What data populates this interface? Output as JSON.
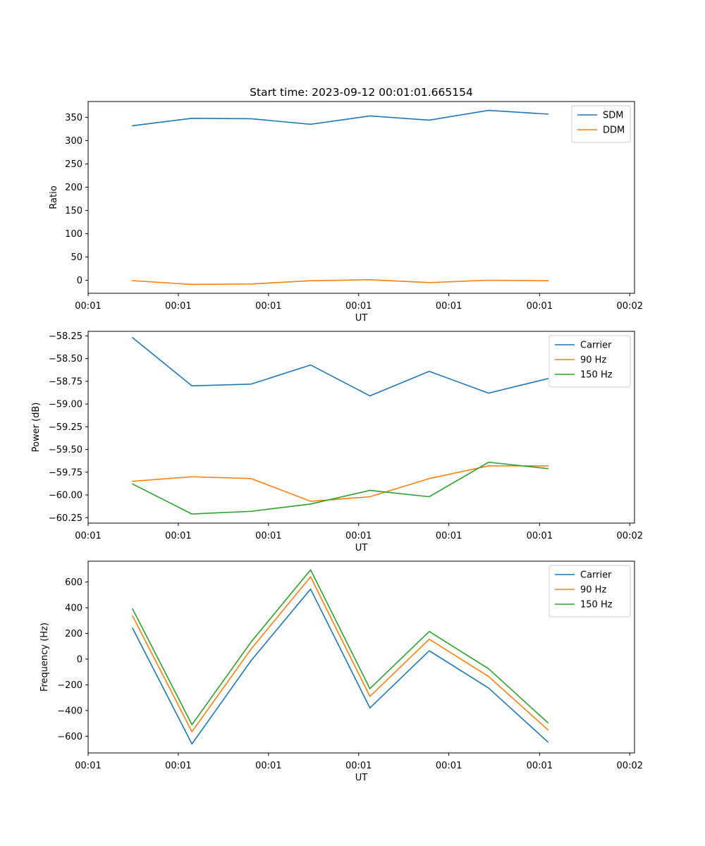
{
  "figure": {
    "title": "Start time: 2023-09-12 00:01:01.665154"
  },
  "chart_data": [
    {
      "type": "line",
      "xlabel": "UT",
      "ylabel": "Ratio",
      "x": [
        0,
        1,
        2,
        3,
        4,
        5,
        6,
        7
      ],
      "xlim": [
        -0.75,
        8.46
      ],
      "xticks": [
        -0.75,
        0.77,
        2.29,
        3.81,
        5.33,
        6.86,
        8.38
      ],
      "xtick_labels": [
        "00:01",
        "00:01",
        "00:01",
        "00:01",
        "00:01",
        "00:01",
        "00:02"
      ],
      "ylim": [
        -28,
        384
      ],
      "yticks": [
        0,
        50,
        100,
        150,
        200,
        250,
        300,
        350
      ],
      "ytick_labels": [
        "0",
        "50",
        "100",
        "150",
        "200",
        "250",
        "300",
        "350"
      ],
      "legend_position": "top-right",
      "series": [
        {
          "name": "SDM",
          "color": "#1f77b4",
          "values": [
            332,
            348,
            347,
            335,
            353,
            344,
            365,
            357
          ]
        },
        {
          "name": "DDM",
          "color": "#ff7f0e",
          "values": [
            -1,
            -9,
            -8,
            -1,
            1,
            -5,
            0,
            -1
          ]
        }
      ]
    },
    {
      "type": "line",
      "xlabel": "UT",
      "ylabel": "Power (dB)",
      "x": [
        0,
        1,
        2,
        3,
        4,
        5,
        6,
        7
      ],
      "xlim": [
        -0.75,
        8.46
      ],
      "xticks": [
        -0.75,
        0.77,
        2.29,
        3.81,
        5.33,
        6.86,
        8.38
      ],
      "xtick_labels": [
        "00:01",
        "00:01",
        "00:01",
        "00:01",
        "00:01",
        "00:01",
        "00:02"
      ],
      "ylim": [
        -60.31,
        -58.2
      ],
      "yticks": [
        -58.25,
        -58.5,
        -58.75,
        -59.0,
        -59.25,
        -59.5,
        -59.75,
        -60.0,
        -60.25
      ],
      "ytick_labels": [
        "−58.25",
        "−58.50",
        "−58.75",
        "−59.00",
        "−59.25",
        "−59.50",
        "−59.75",
        "−60.00",
        "−60.25"
      ],
      "legend_position": "top-right",
      "series": [
        {
          "name": "Carrier",
          "color": "#1f77b4",
          "values": [
            -58.27,
            -58.8,
            -58.78,
            -58.57,
            -58.91,
            -58.64,
            -58.88,
            -58.72
          ]
        },
        {
          "name": "90 Hz",
          "color": "#ff7f0e",
          "values": [
            -59.85,
            -59.8,
            -59.82,
            -60.07,
            -60.02,
            -59.82,
            -59.68,
            -59.68
          ]
        },
        {
          "name": "150 Hz",
          "color": "#2ca02c",
          "values": [
            -59.88,
            -60.21,
            -60.18,
            -60.1,
            -59.95,
            -60.02,
            -59.64,
            -59.71
          ]
        }
      ]
    },
    {
      "type": "line",
      "xlabel": "UT",
      "ylabel": "Frequency (Hz)",
      "x": [
        0,
        1,
        2,
        3,
        4,
        5,
        6,
        7
      ],
      "xlim": [
        -0.75,
        8.46
      ],
      "xticks": [
        -0.75,
        0.77,
        2.29,
        3.81,
        5.33,
        6.86,
        8.38
      ],
      "xtick_labels": [
        "00:01",
        "00:01",
        "00:01",
        "00:01",
        "00:01",
        "00:01",
        "00:02"
      ],
      "ylim": [
        -730,
        762
      ],
      "yticks": [
        -600,
        -400,
        -200,
        0,
        200,
        400,
        600
      ],
      "ytick_labels": [
        "−600",
        "−400",
        "−200",
        "0",
        "200",
        "400",
        "600"
      ],
      "legend_position": "top-right",
      "series": [
        {
          "name": "Carrier",
          "color": "#1f77b4",
          "values": [
            240,
            -660,
            -10,
            545,
            -380,
            65,
            -225,
            -645
          ]
        },
        {
          "name": "90 Hz",
          "color": "#ff7f0e",
          "values": [
            335,
            -565,
            80,
            640,
            -290,
            155,
            -135,
            -550
          ]
        },
        {
          "name": "150 Hz",
          "color": "#2ca02c",
          "values": [
            390,
            -510,
            135,
            695,
            -230,
            215,
            -75,
            -495
          ]
        }
      ]
    }
  ]
}
